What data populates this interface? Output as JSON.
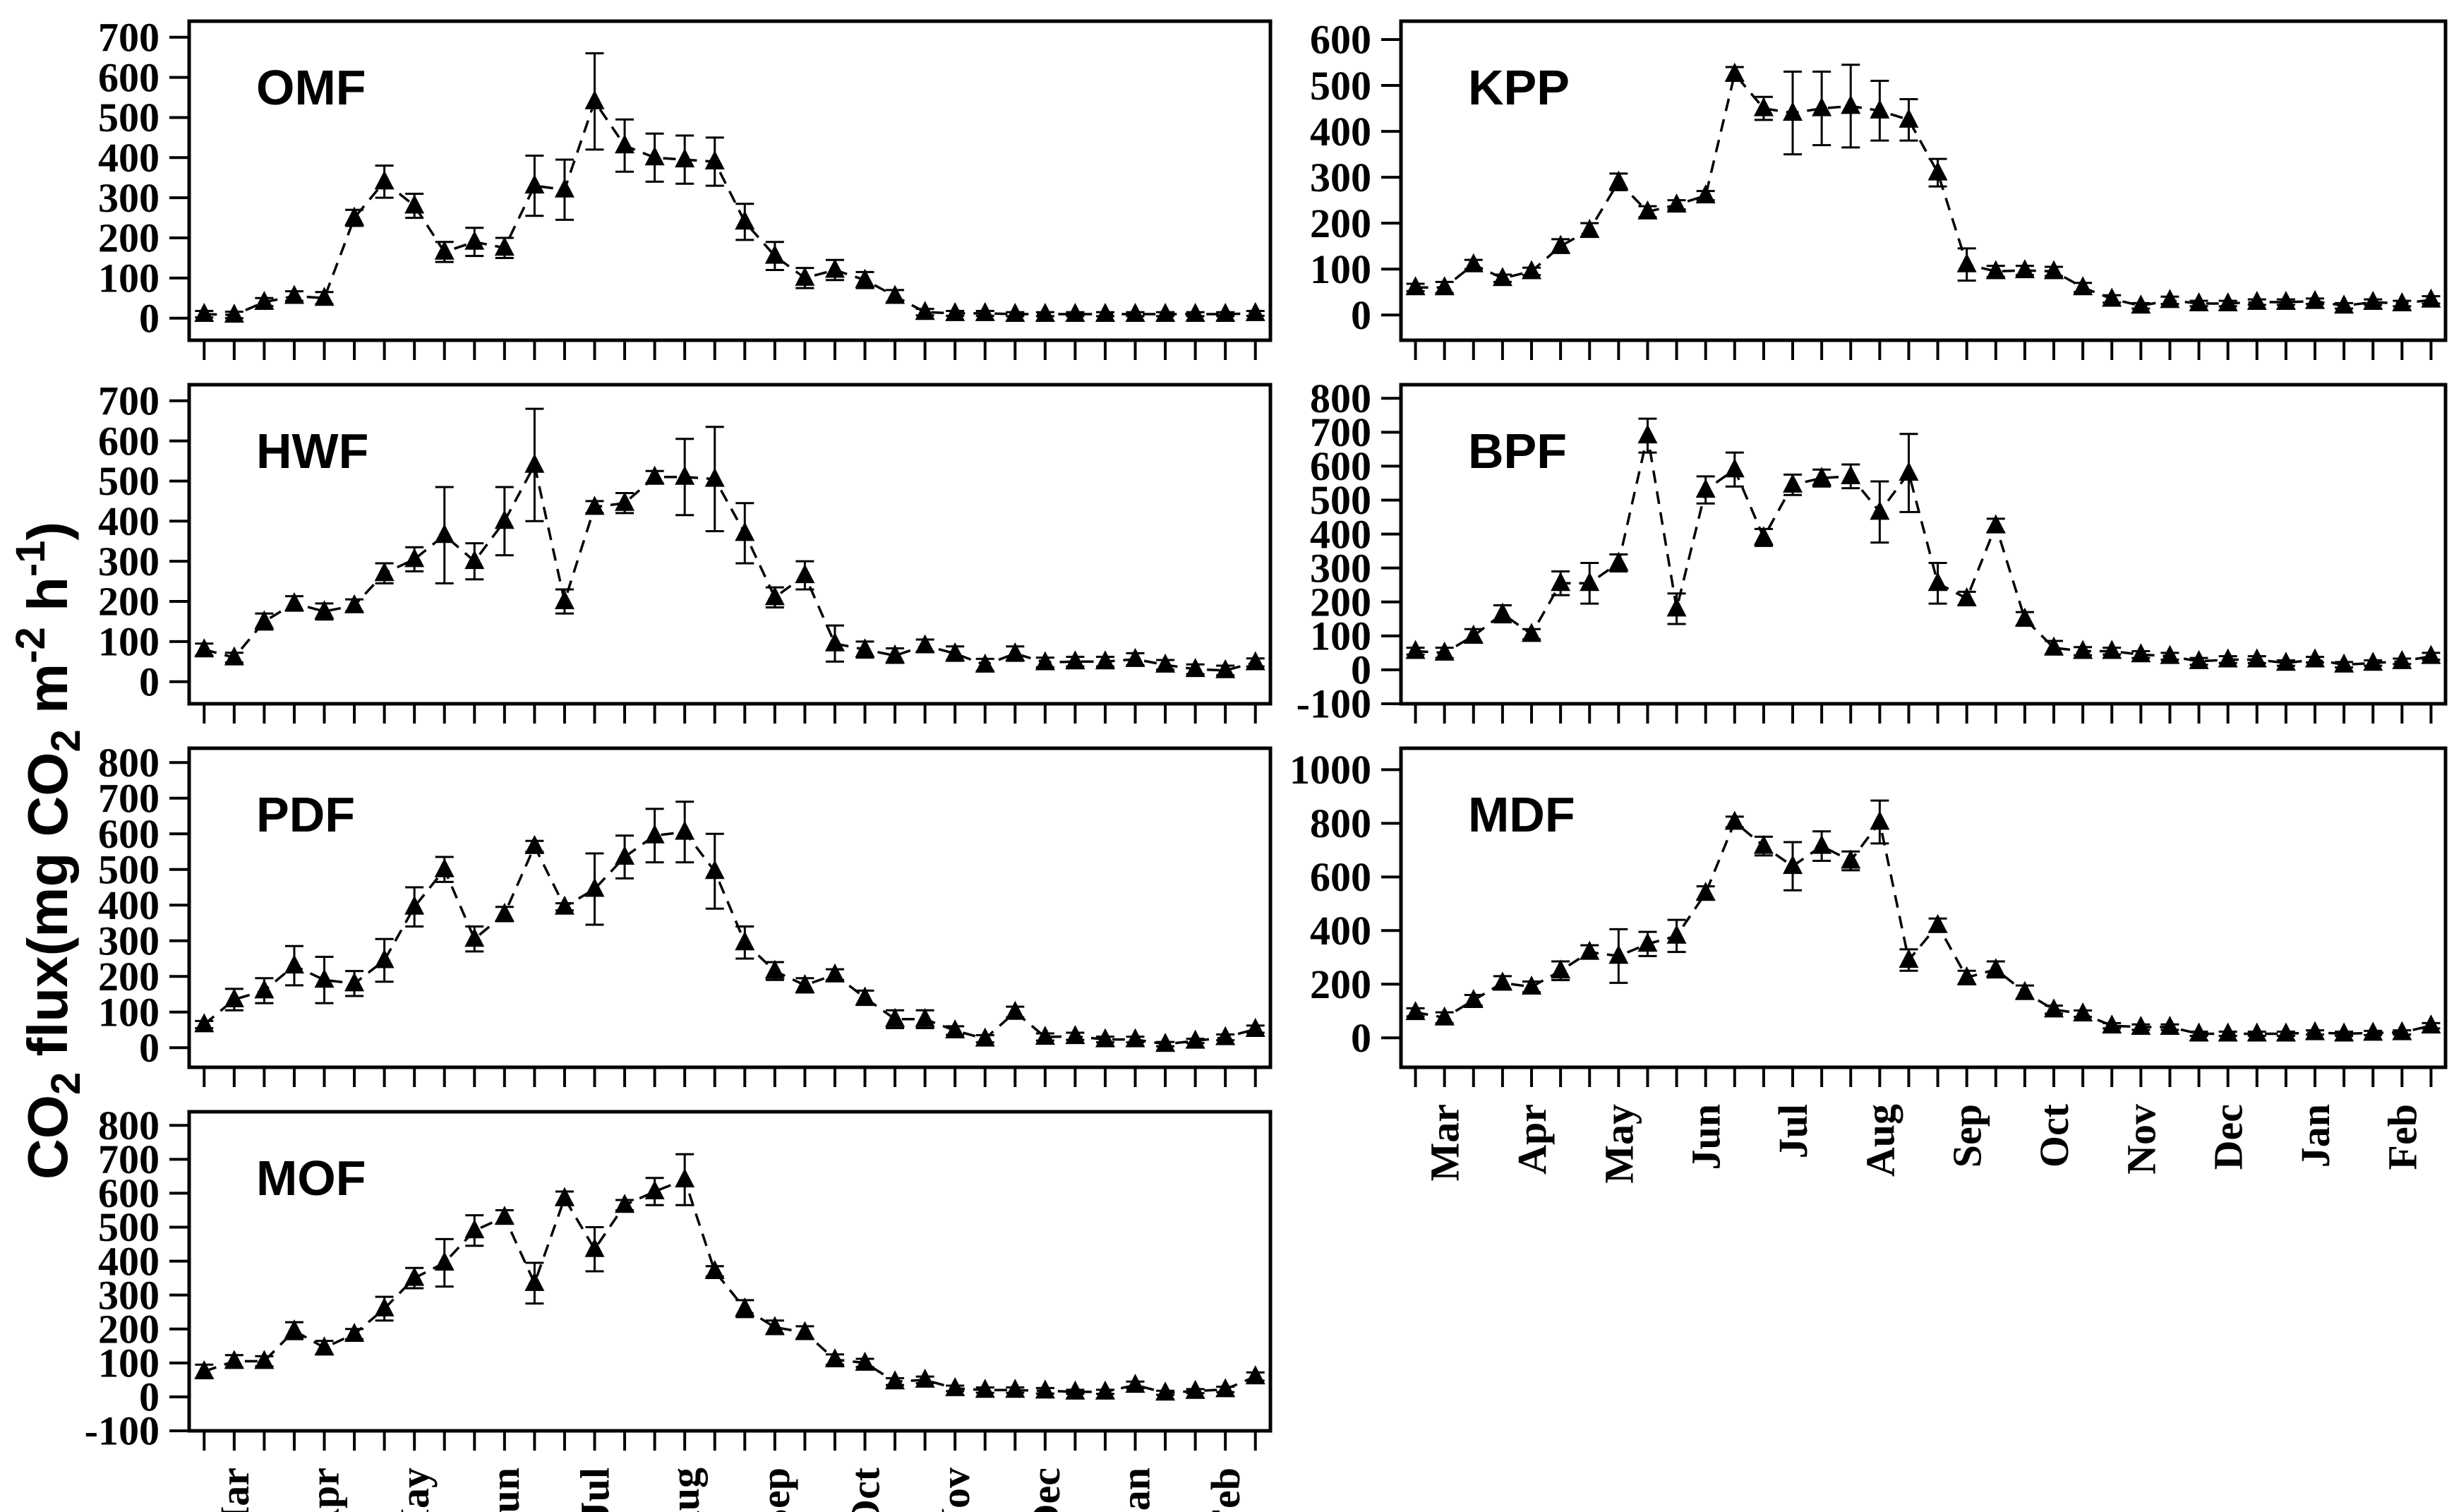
{
  "figure": {
    "background": "#ffffff",
    "ink_color": "#000000",
    "marker": "filled-triangle-up-icon",
    "line_style": "dashed",
    "y_axis_title_parts": [
      {
        "t": "CO"
      },
      {
        "t": "2",
        "sub": true
      },
      {
        "t": " flux(mg CO"
      },
      {
        "t": "2",
        "sub": true
      },
      {
        "t": " m"
      },
      {
        "t": "-2",
        "sup": true
      },
      {
        "t": " h"
      },
      {
        "t": "-1",
        "sup": true
      },
      {
        "t": ")"
      }
    ],
    "months": [
      "Mar",
      "Apr",
      "May",
      "Jun",
      "Jul",
      "Aug",
      "Sep",
      "Oct",
      "Nov",
      "Dec",
      "Jan",
      "Feb"
    ],
    "points_per_month": 3
  },
  "chart_data": [
    {
      "type": "line",
      "title": "OMF",
      "col": 0,
      "row": 0,
      "ylim": {
        "min": 0,
        "max": 700,
        "step": 100
      },
      "values": [
        10,
        8,
        40,
        55,
        50,
        250,
        340,
        280,
        165,
        190,
        175,
        330,
        320,
        540,
        430,
        400,
        395,
        390,
        240,
        155,
        100,
        120,
        95,
        55,
        15,
        12,
        12,
        10,
        10,
        10,
        10,
        10,
        10,
        10,
        10,
        12
      ],
      "errors": [
        8,
        8,
        10,
        12,
        15,
        20,
        40,
        30,
        25,
        35,
        25,
        75,
        75,
        120,
        65,
        60,
        60,
        60,
        45,
        35,
        25,
        25,
        20,
        15,
        8,
        6,
        6,
        5,
        5,
        5,
        5,
        5,
        5,
        5,
        5,
        6
      ]
    },
    {
      "type": "line",
      "title": "KPP",
      "col": 1,
      "row": 0,
      "ylim": {
        "min": 0,
        "max": 600,
        "step": 100
      },
      "values": [
        60,
        60,
        110,
        80,
        95,
        150,
        185,
        290,
        225,
        240,
        260,
        525,
        450,
        440,
        450,
        455,
        445,
        425,
        310,
        110,
        95,
        97,
        95,
        60,
        35,
        20,
        32,
        25,
        25,
        28,
        28,
        30,
        20,
        28,
        25,
        33
      ],
      "errors": [
        8,
        12,
        10,
        8,
        8,
        15,
        15,
        18,
        12,
        10,
        10,
        15,
        25,
        90,
        80,
        90,
        65,
        45,
        30,
        35,
        12,
        10,
        10,
        10,
        8,
        6,
        8,
        6,
        6,
        6,
        6,
        6,
        6,
        6,
        6,
        8
      ]
    },
    {
      "type": "line",
      "title": "HWF",
      "col": 0,
      "row": 1,
      "ylim": {
        "min": 0,
        "max": 700,
        "step": 100
      },
      "values": [
        80,
        60,
        150,
        195,
        175,
        190,
        270,
        305,
        365,
        300,
        400,
        540,
        200,
        435,
        445,
        510,
        510,
        505,
        370,
        210,
        265,
        95,
        80,
        65,
        90,
        70,
        42,
        70,
        48,
        50,
        50,
        56,
        42,
        31,
        28,
        48
      ],
      "errors": [
        15,
        12,
        20,
        18,
        20,
        15,
        25,
        30,
        120,
        45,
        85,
        140,
        30,
        15,
        25,
        15,
        95,
        130,
        75,
        25,
        35,
        45,
        20,
        18,
        15,
        18,
        15,
        18,
        12,
        12,
        12,
        15,
        12,
        12,
        12,
        10
      ]
    },
    {
      "type": "line",
      "title": "BPF",
      "col": 1,
      "row": 1,
      "ylim": {
        "min": -100,
        "max": 800,
        "step": 100
      },
      "values": [
        55,
        50,
        100,
        165,
        105,
        255,
        255,
        315,
        690,
        180,
        530,
        590,
        390,
        545,
        565,
        570,
        465,
        580,
        255,
        210,
        425,
        150,
        65,
        55,
        55,
        45,
        40,
        25,
        30,
        30,
        20,
        30,
        15,
        20,
        25,
        40
      ],
      "errors": [
        10,
        15,
        20,
        25,
        15,
        35,
        60,
        25,
        50,
        45,
        40,
        50,
        25,
        30,
        25,
        35,
        90,
        115,
        60,
        20,
        20,
        20,
        20,
        12,
        10,
        10,
        10,
        10,
        10,
        10,
        8,
        8,
        8,
        8,
        8,
        10
      ]
    },
    {
      "type": "line",
      "title": "PDF",
      "col": 0,
      "row": 2,
      "ylim": {
        "min": 0,
        "max": 800,
        "step": 100
      },
      "values": [
        65,
        135,
        160,
        230,
        190,
        180,
        245,
        395,
        500,
        305,
        375,
        565,
        395,
        445,
        535,
        595,
        605,
        495,
        295,
        215,
        175,
        205,
        140,
        80,
        80,
        48,
        25,
        100,
        30,
        32,
        23,
        23,
        10,
        19,
        29,
        52
      ],
      "errors": [
        10,
        30,
        35,
        55,
        65,
        35,
        60,
        55,
        35,
        35,
        20,
        15,
        10,
        100,
        60,
        75,
        85,
        105,
        45,
        25,
        20,
        15,
        20,
        25,
        25,
        12,
        10,
        15,
        10,
        10,
        8,
        8,
        6,
        6,
        8,
        10
      ]
    },
    {
      "type": "line",
      "title": "MDF",
      "col": 1,
      "row": 2,
      "ylim": {
        "min": 0,
        "max": 1000,
        "step": 200
      },
      "values": [
        95,
        75,
        140,
        205,
        190,
        250,
        320,
        305,
        350,
        380,
        540,
        805,
        715,
        640,
        715,
        660,
        805,
        290,
        420,
        225,
        255,
        170,
        105,
        90,
        45,
        40,
        40,
        15,
        15,
        15,
        15,
        20,
        15,
        18,
        20,
        45
      ],
      "errors": [
        15,
        20,
        20,
        25,
        20,
        35,
        25,
        100,
        45,
        60,
        25,
        20,
        35,
        90,
        55,
        35,
        80,
        40,
        25,
        25,
        30,
        25,
        15,
        12,
        10,
        10,
        10,
        8,
        8,
        8,
        8,
        8,
        8,
        8,
        8,
        10
      ]
    },
    {
      "type": "line",
      "title": "MOF",
      "col": 0,
      "row": 3,
      "ylim": {
        "min": -100,
        "max": 800,
        "step": 100
      },
      "values": [
        75,
        105,
        105,
        195,
        145,
        185,
        260,
        350,
        395,
        490,
        530,
        335,
        585,
        435,
        565,
        605,
        640,
        370,
        260,
        205,
        190,
        110,
        100,
        45,
        50,
        25,
        20,
        20,
        18,
        15,
        15,
        35,
        12,
        17,
        22,
        60
      ],
      "errors": [
        20,
        18,
        15,
        25,
        20,
        15,
        35,
        30,
        70,
        45,
        20,
        60,
        20,
        65,
        15,
        40,
        75,
        15,
        25,
        20,
        18,
        15,
        12,
        10,
        10,
        8,
        8,
        8,
        8,
        6,
        6,
        10,
        6,
        6,
        8,
        12
      ]
    }
  ]
}
